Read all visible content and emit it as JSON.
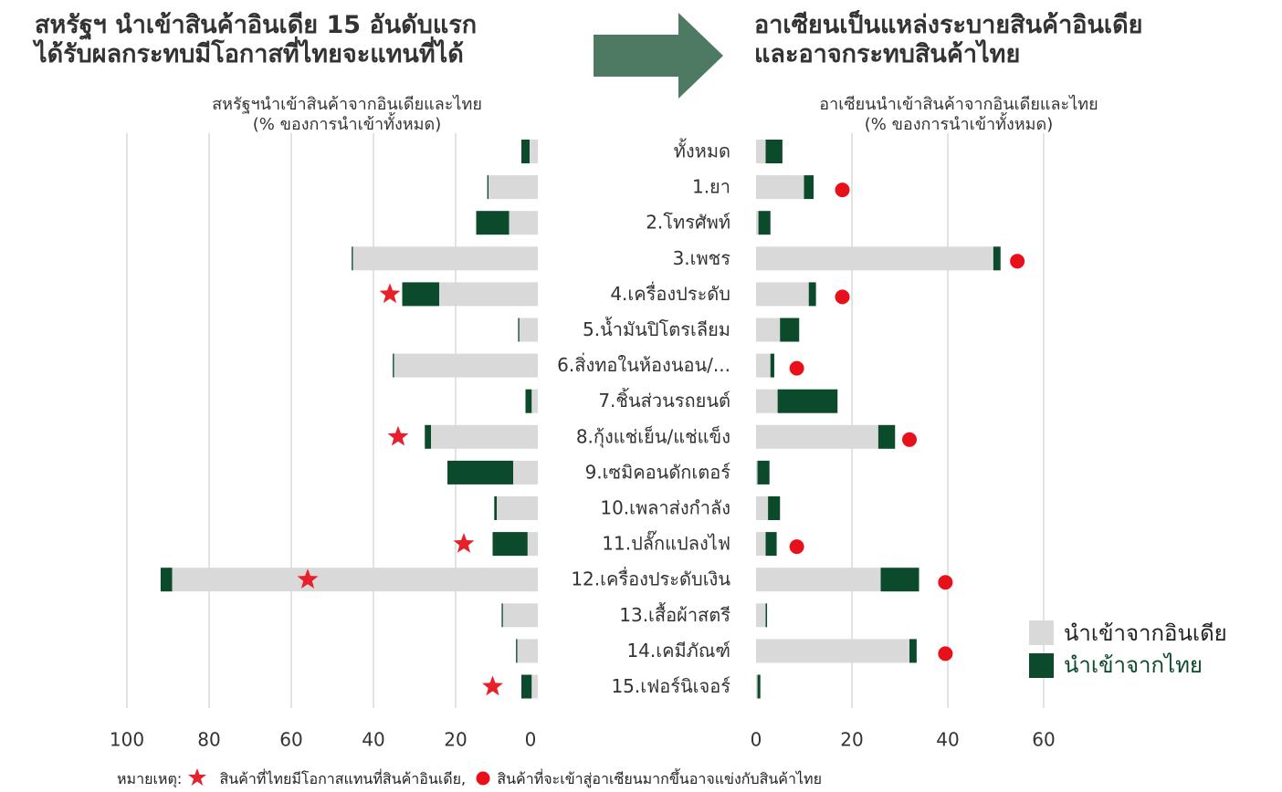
{
  "left_title": [
    "สหรัฐฯ นำเข้าสินค้าอินเดีย 15 อันดับแรก",
    "ได้รับผลกระทบมีโอกาสที่ไทยจะแทนที่ได้"
  ],
  "right_title": [
    "อาเซียนเป็นแหล่งระบายสินค้าอินเดีย",
    "และอาจกระทบสินค้าไทย"
  ],
  "left_subtitle": [
    "สหรัฐฯนำเข้าสินค้าจากอินเดียและไทย",
    "(% ของการนำเข้าทั้งหมด)"
  ],
  "right_subtitle": [
    "อาเซียนนำเข้าสินค้าจากอินเดียและไทย",
    "(% ของการนำเข้าทั้งหมด)"
  ],
  "note": {
    "prefix": "หมายเหตุ:",
    "star_text": "สินค้าที่ไทยมีโอกาสแทนที่สินค้าอินเดีย,",
    "dot_text": "สินค้าที่จะเข้าสู่อาเซียนมากขึ้นอาจแข่งกับสินค้าไทย"
  },
  "colors": {
    "india": "#d9d9d9",
    "thai": "#0b4a2a",
    "star": "#e8202a",
    "dot": "#e8101a",
    "arrow": "#4e7a63",
    "grid": "#d0d0d0"
  },
  "chart_data": [
    {
      "type": "bar",
      "orientation": "horizontal-stacked",
      "title": "สหรัฐฯนำเข้าสินค้าจากอินเดียและไทย (% ของการนำเข้าทั้งหมด)",
      "categories": [
        "ทั้งหมด",
        "1.ยา",
        "2.โทรศัพท์",
        "3.เพชร",
        "4.เครื่องประดับ",
        "5.น้ำมันปิโตรเลียม",
        "6.สิ่งทอในห้องนอน/...",
        "7.ชิ้นส่วนรถยนต์",
        "8.กุ้งแช่เย็น/แช่แข็ง",
        "9.เซมิคอนดักเตอร์",
        "10.เพลาส่งกำลัง",
        "11.ปลั๊กแปลงไฟ",
        "12.เครื่องประดับเงิน",
        "13.เสื้อผ้าสตรี",
        "14.เคมีภัณฑ์",
        "15.เฟอร์นิเจอร์"
      ],
      "series": [
        {
          "name": "นำเข้าจากอินเดีย",
          "values": [
            2,
            12,
            7,
            45,
            24,
            4.5,
            35,
            1.5,
            26,
            6,
            10,
            2.5,
            89,
            8.5,
            5,
            1.5
          ]
        },
        {
          "name": "นำเข้าจากไทย",
          "values": [
            2,
            0.3,
            8,
            0.3,
            9,
            0.3,
            0.3,
            1.5,
            1.5,
            16,
            0.6,
            8.5,
            2.8,
            0.3,
            0.3,
            2.5
          ]
        }
      ],
      "x_ticks": [
        "100",
        "80",
        "60",
        "40",
        "20",
        "0"
      ],
      "xlim": [
        100,
        0
      ],
      "star_markers": {
        "categories": [
          "4.เครื่องประดับ",
          "8.กุ้งแช่เย็น/แช่แข็ง",
          "11.ปลั๊กแปลงไฟ",
          "12.เครื่องประดับเงิน",
          "15.เฟอร์นิเจอร์"
        ],
        "values": [
          36,
          34,
          18,
          56,
          11
        ]
      }
    },
    {
      "type": "bar",
      "orientation": "horizontal-stacked",
      "title": "อาเซียนนำเข้าสินค้าจากอินเดียและไทย (% ของการนำเข้าทั้งหมด)",
      "categories": [
        "ทั้งหมด",
        "1.ยา",
        "2.โทรศัพท์",
        "3.เพชร",
        "4.เครื่องประดับ",
        "5.น้ำมันปิโตรเลียม",
        "6.สิ่งทอในห้องนอน/...",
        "7.ชิ้นส่วนรถยนต์",
        "8.กุ้งแช่เย็น/แช่แข็ง",
        "9.เซมิคอนดักเตอร์",
        "10.เพลาส่งกำลัง",
        "11.ปลั๊กแปลงไฟ",
        "12.เครื่องประดับเงิน",
        "13.เสื้อผ้าสตรี",
        "14.เคมีภัณฑ์",
        "15.เฟอร์นิเจอร์"
      ],
      "series": [
        {
          "name": "นำเข้าจากอินเดีย",
          "values": [
            2,
            10,
            0.5,
            49.5,
            11,
            5,
            3,
            4.5,
            25.5,
            0.3,
            2.5,
            2,
            26,
            2,
            32,
            0.3
          ]
        },
        {
          "name": "นำเข้าจากไทย",
          "values": [
            3.5,
            2,
            2.5,
            1.5,
            1.5,
            4,
            0.8,
            12.5,
            3.5,
            2.5,
            2.5,
            2.3,
            8,
            0.3,
            1.5,
            0.6
          ]
        }
      ],
      "x_ticks": [
        "0",
        "20",
        "40",
        "60"
      ],
      "xlim": [
        0,
        60
      ],
      "dot_markers": {
        "categories": [
          "1.ยา",
          "3.เพชร",
          "4.เครื่องประดับ",
          "6.สิ่งทอในห้องนอน/...",
          "8.กุ้งแช่เย็น/แช่แข็ง",
          "11.ปลั๊กแปลงไฟ",
          "12.เครื่องประดับเงิน",
          "14.เคมีภัณฑ์"
        ],
        "values": [
          18,
          54.5,
          18,
          8.5,
          32,
          8.5,
          39.5,
          39.5
        ]
      },
      "legend": {
        "position": "bottom-right",
        "entries": [
          "นำเข้าจากอินเดีย",
          "นำเข้าจากไทย"
        ]
      }
    }
  ]
}
